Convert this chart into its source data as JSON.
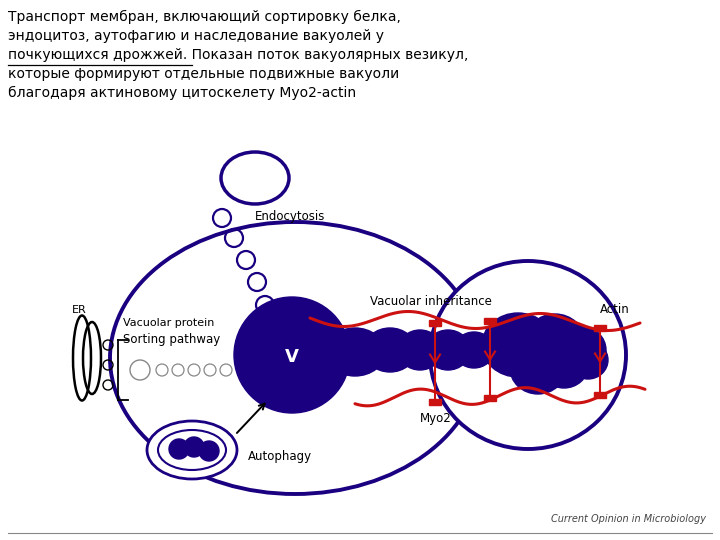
{
  "title_lines": [
    "Транспорт мембран, включающий сортировку белка,",
    "эндоцитоз, аутофагию и наследование вакуолей у",
    "почкующихся дрожжей. Показан поток вакуолярных везикул,",
    "которые формируют отдельные подвижные вакуоли",
    "благодаря актиновому цитоскелету Myo2-actin"
  ],
  "cell_color": "#1a0080",
  "vacuole_color": "#1a0080",
  "actin_color": "#cc1111",
  "background_color": "#ffffff",
  "journal_label": "Current Opinion in Microbiology",
  "labels": {
    "endocytosis": "Endocytosis",
    "er": "ER",
    "vacuolar_protein": "Vacuolar protein",
    "sorting_pathway": "Sorting pathway",
    "vacuolar_inheritance": "Vacuolar inheritance",
    "actin": "Actin",
    "myo2": "Myo2",
    "autophagy": "Autophagy",
    "v": "V"
  }
}
